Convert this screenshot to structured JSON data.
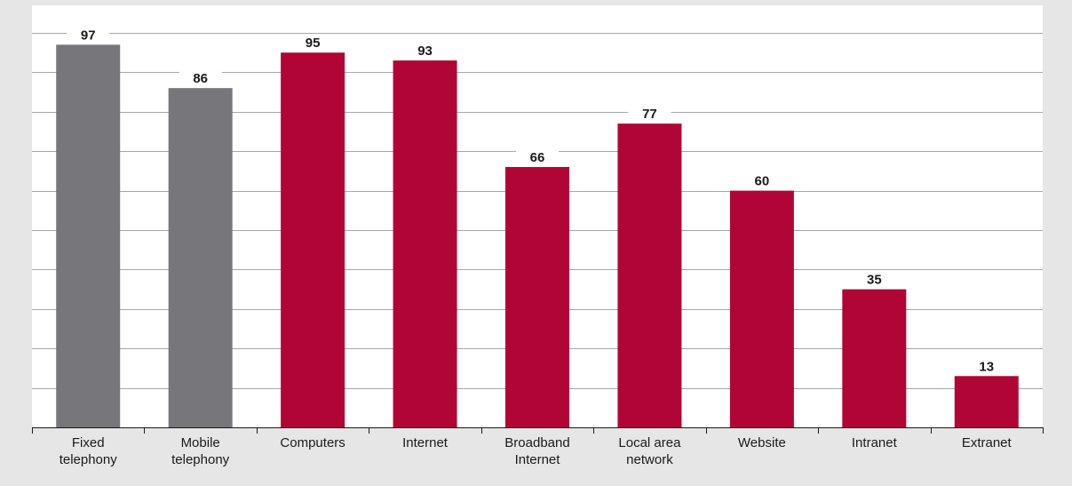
{
  "chart_data": {
    "type": "bar",
    "categories": [
      [
        "Fixed",
        "telephony"
      ],
      [
        "Mobile",
        "telephony"
      ],
      [
        "Computers"
      ],
      [
        "Internet"
      ],
      [
        "Broadband",
        "Internet"
      ],
      [
        "Local area",
        "network"
      ],
      [
        "Website"
      ],
      [
        "Intranet"
      ],
      [
        "Extranet"
      ]
    ],
    "values": [
      97,
      86,
      95,
      93,
      66,
      77,
      60,
      35,
      13
    ],
    "ylim": [
      0,
      100
    ],
    "grid": true,
    "bar_colors": [
      "#77777b",
      "#77777b",
      "#b10635",
      "#b10635",
      "#b10635",
      "#b10635",
      "#b10635",
      "#b10635",
      "#b10635"
    ],
    "grid_color": "#a7a7a9",
    "plot_background": "#ffffff",
    "page_background": "#e6e6e7"
  }
}
